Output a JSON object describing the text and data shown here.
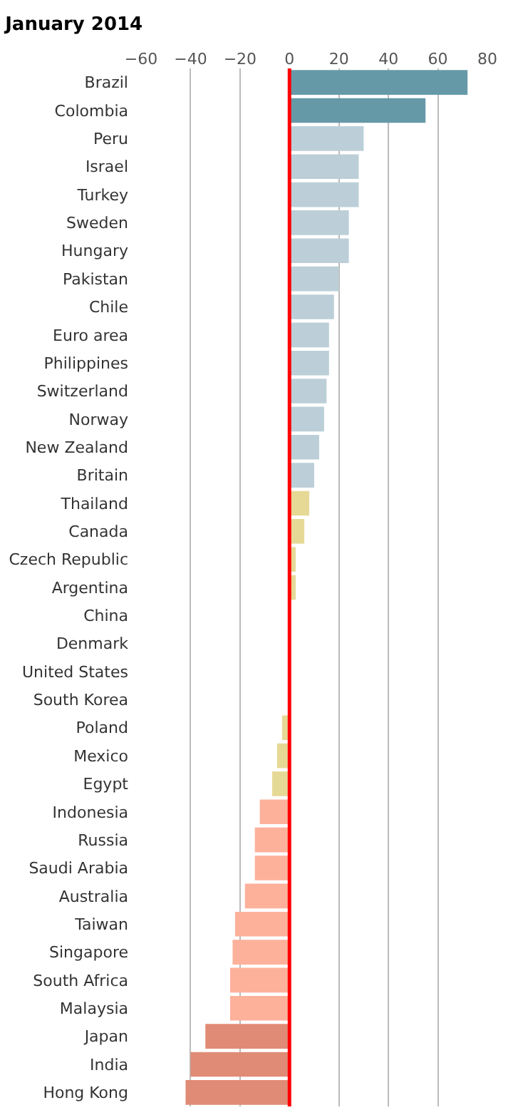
{
  "chart_data": {
    "type": "bar",
    "orientation": "horizontal",
    "title": "January 2014",
    "categories": [
      "Brazil",
      "Colombia",
      "Peru",
      "Israel",
      "Turkey",
      "Sweden",
      "Hungary",
      "Pakistan",
      "Chile",
      "Euro area",
      "Philippines",
      "Switzerland",
      "Norway",
      "New Zealand",
      "Britain",
      "Thailand",
      "Canada",
      "Czech Republic",
      "Argentina",
      "China",
      "Denmark",
      "United States",
      "South Korea",
      "Poland",
      "Mexico",
      "Egypt",
      "Indonesia",
      "Russia",
      "Saudi Arabia",
      "Australia",
      "Taiwan",
      "Singapore",
      "South Africa",
      "Malaysia",
      "Japan",
      "India",
      "Hong Kong"
    ],
    "values": [
      72,
      55,
      30,
      28,
      28,
      24,
      24,
      20,
      18,
      16,
      16,
      15,
      14,
      12,
      10,
      8,
      6,
      2.5,
      2.5,
      0,
      0,
      0,
      0,
      -3,
      -5,
      -7,
      -12,
      -14,
      -14,
      -18,
      -22,
      -23,
      -24,
      -24,
      -34,
      -40,
      -42
    ],
    "colors": [
      "#6699a8",
      "#6699a8",
      "#bccfd8",
      "#bccfd8",
      "#bccfd8",
      "#bccfd8",
      "#bccfd8",
      "#bccfd8",
      "#bccfd8",
      "#bccfd8",
      "#bccfd8",
      "#bccfd8",
      "#bccfd8",
      "#bccfd8",
      "#bccfd8",
      "#e6d996",
      "#e6d996",
      "#e6d996",
      "#e6d996",
      "#e6d996",
      "#e6d996",
      "#e6d996",
      "#e6d996",
      "#e6d996",
      "#e6d996",
      "#e6d996",
      "#fdb19b",
      "#fdb19b",
      "#fdb19b",
      "#fdb19b",
      "#fdb19b",
      "#fdb19b",
      "#fdb19b",
      "#fdb19b",
      "#e08b76",
      "#e08b76",
      "#e08b76"
    ],
    "xlim": [
      -60,
      80
    ],
    "xticks": [
      {
        "value": -60,
        "label": "−60"
      },
      {
        "value": -40,
        "label": "−40"
      },
      {
        "value": -20,
        "label": "−20"
      },
      0,
      20,
      40,
      60,
      80
    ],
    "ref_lines": [
      {
        "axis": "x",
        "value": 0,
        "color": "#ff0000"
      }
    ],
    "grid": "x"
  }
}
